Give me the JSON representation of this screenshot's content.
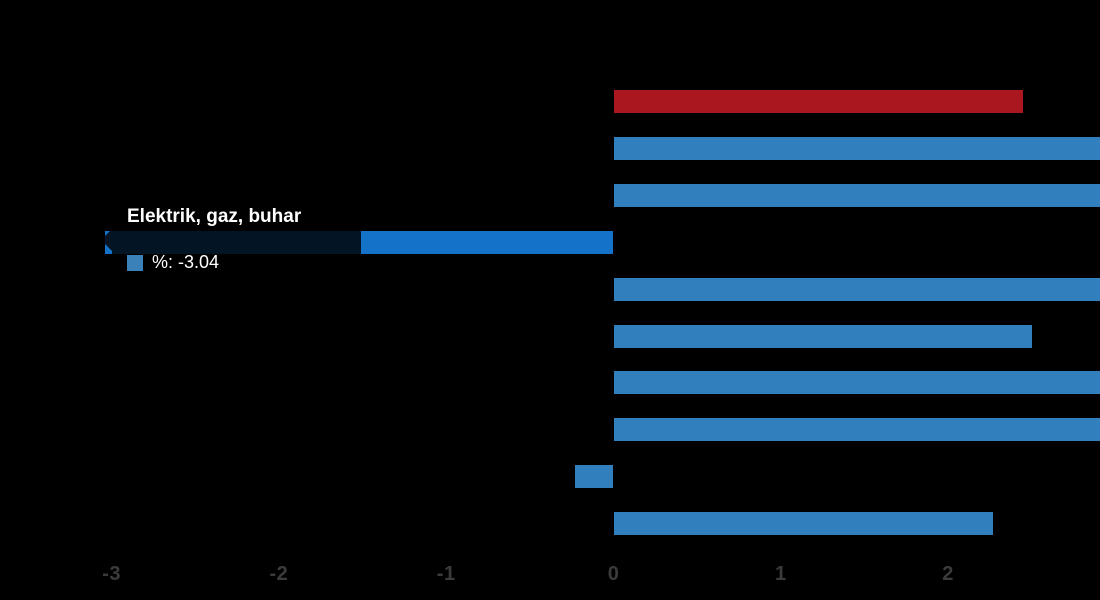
{
  "colors": {
    "background": "#000000",
    "blue": "#3180bd",
    "blue_highlight": "#1473c8",
    "red": "#aa171e",
    "tick_label": "#3b3b3b",
    "tooltip_bg": "rgba(0,0,0,0.82)"
  },
  "tooltip": {
    "title": "Elektrik, gaz, buhar",
    "value_text": "%: -3.04",
    "swatch_color": "#3a80b9"
  },
  "chart_data": {
    "type": "bar",
    "orientation": "horizontal",
    "title": "",
    "xlabel": "",
    "ylabel": "",
    "x_axis": {
      "ticks": [
        -3,
        -2,
        -1,
        0,
        1,
        2
      ],
      "visible_range": [
        -3.07,
        2.91
      ],
      "grid": false
    },
    "legend": {
      "series_name": "%",
      "visible": false
    },
    "categories": [
      "",
      "",
      "",
      "Elektrik, gaz, buhar",
      "",
      "",
      "",
      "",
      "",
      ""
    ],
    "bars": [
      {
        "value": 2.45,
        "clipped": false,
        "color": "red",
        "hovered": false
      },
      {
        "value": null,
        "clipped": true,
        "min_visible_value": 2.91,
        "color": "blue",
        "hovered": false
      },
      {
        "value": null,
        "clipped": true,
        "min_visible_value": 2.91,
        "color": "blue",
        "hovered": false
      },
      {
        "value": -3.04,
        "clipped": false,
        "color": "blue_highlight",
        "hovered": true,
        "label": "Elektrik, gaz, buhar"
      },
      {
        "value": null,
        "clipped": true,
        "min_visible_value": 2.91,
        "color": "blue",
        "hovered": false
      },
      {
        "value": 2.5,
        "clipped": false,
        "color": "blue",
        "hovered": false
      },
      {
        "value": null,
        "clipped": true,
        "min_visible_value": 2.91,
        "color": "blue",
        "hovered": false
      },
      {
        "value": null,
        "clipped": true,
        "min_visible_value": 2.91,
        "color": "blue",
        "hovered": false
      },
      {
        "value": -0.23,
        "clipped": false,
        "color": "blue",
        "hovered": false
      },
      {
        "value": 2.27,
        "clipped": false,
        "color": "blue",
        "hovered": false
      }
    ]
  }
}
